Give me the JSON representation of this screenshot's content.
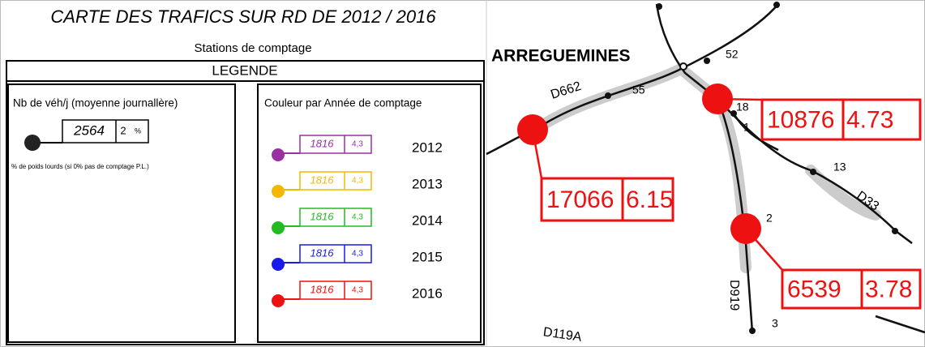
{
  "header": {
    "title": "CARTE DES TRAFICS SUR RD DE 2012 / 2016",
    "subtitle": "Stations de comptage"
  },
  "legend": {
    "title": "LEGENDE",
    "volume_box": {
      "title": "Nb de véh/j (moyenne journallère)",
      "sample_value": "2564",
      "sample_pl": "2",
      "pl_unit": "%",
      "note": "% de poids lourds (si 0% pas de comptage P.L.)"
    },
    "year_box": {
      "title": "Couleur par Année de comptage",
      "items": [
        {
          "year": "2012",
          "value": "1816",
          "pl": "4,3",
          "color": "#9b30a0"
        },
        {
          "year": "2013",
          "value": "1816",
          "pl": "4,3",
          "color": "#f5b800"
        },
        {
          "year": "2014",
          "value": "1816",
          "pl": "4,3",
          "color": "#22bb22"
        },
        {
          "year": "2015",
          "value": "1816",
          "pl": "4,3",
          "color": "#1a1aee"
        },
        {
          "year": "2016",
          "value": "1816",
          "pl": "4,3",
          "color": "#ee1111"
        }
      ]
    }
  },
  "map": {
    "town": "ARREGUEMINES",
    "roads": [
      "D662",
      "D33",
      "D919",
      "D119A"
    ],
    "station_numbers": [
      "55",
      "52",
      "1",
      "13",
      "2",
      "3",
      "18"
    ],
    "counts": [
      {
        "value": "17066",
        "pl": "6.15"
      },
      {
        "value": "10876",
        "pl": "4.73"
      },
      {
        "value": "6539",
        "pl": "3.78"
      }
    ]
  }
}
